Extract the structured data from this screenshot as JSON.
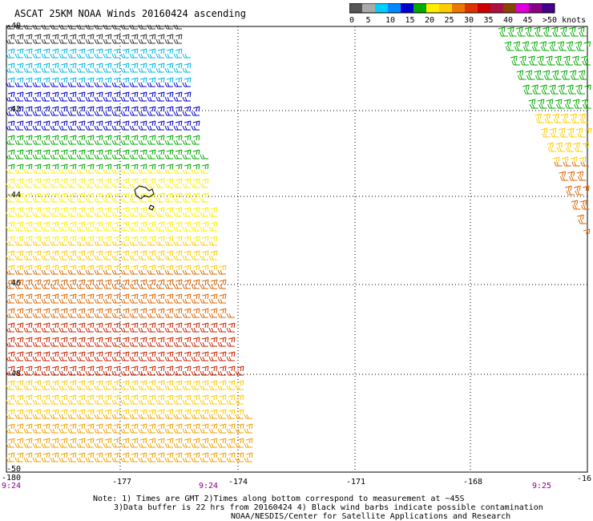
{
  "title": "ASCAT 25KM NOAA Winds 20160424 ascending",
  "legend": {
    "labels": [
      "0",
      "5",
      "10",
      "15",
      "20",
      "25",
      "30",
      "35",
      "40",
      "45",
      ">50 knots"
    ],
    "colors": [
      "#555555",
      "#aaaaaa",
      "#00ccff",
      "#0088ff",
      "#0000cc",
      "#00aa00",
      "#ffee00",
      "#ffcc00",
      "#ee7700",
      "#dd3300",
      "#cc0000",
      "#aa1144",
      "#884400",
      "#dd00dd",
      "#880088",
      "#440088"
    ]
  },
  "map": {
    "lat_labels": [
      "-40",
      "-42",
      "-44",
      "-46",
      "-48",
      "-50"
    ],
    "lon_labels": [
      "-180",
      "-177",
      "-174",
      "-171",
      "-168",
      "-16"
    ]
  },
  "times": [
    "9:24",
    "9:24",
    "9:25"
  ],
  "notes": [
    "Note: 1) Times are GMT 2)Times along bottom correspond to measurement at ~45S",
    "3)Data buffer is 22 hrs from 20160424 4) Black wind barbs indicate possible contamination",
    "NOAA/NESDIS/Center for Satellite Applications and Research"
  ]
}
